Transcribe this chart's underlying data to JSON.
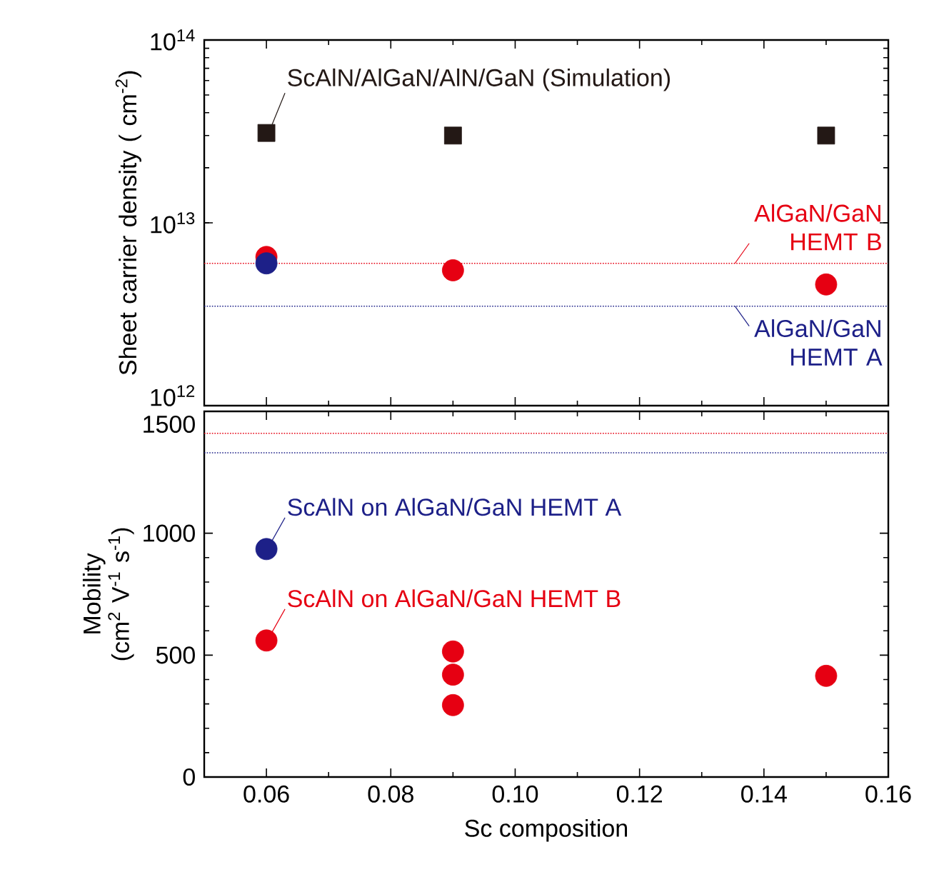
{
  "chart_data": [
    {
      "type": "scatter",
      "ylabel": "Sheet carrier density ( cm$^{-2}$)",
      "log": "y",
      "tick_labels": "y",
      "xlim": [
        0.05,
        0.16
      ],
      "xticks": [
        0.06,
        0.08,
        0.1,
        0.12,
        0.14,
        0.16
      ],
      "ylim": [
        1000000000000.0,
        100000000000000.0
      ],
      "yticks": [
        {
          "value": 1000000000000.0,
          "label": "10$^{12}$"
        },
        {
          "value": 10000000000000.0,
          "label": "10$^{13}$"
        },
        {
          "value": 100000000000000.0,
          "label": "10$^{14}$"
        }
      ],
      "series": [
        {
          "name": "ScAlN/AlGaN/AlN/GaN (Simulation)",
          "color": "#231815",
          "marker": "square",
          "x": [
            0.06,
            0.09,
            0.15
          ],
          "values": [
            31000000000000.0,
            30000000000000.0,
            30000000000000.0
          ]
        },
        {
          "color": "#e60012",
          "marker": "circle",
          "x": [
            0.06,
            0.09,
            0.15
          ],
          "values": [
            6500000000000.0,
            5500000000000.0,
            4600000000000.0
          ]
        },
        {
          "color": "#1d2088",
          "marker": "circle",
          "x": [
            0.06
          ],
          "values": [
            6000000000000.0
          ]
        }
      ],
      "ref_lines": [
        {
          "axis": "y",
          "value": 6000000000000.0,
          "label": "AlGaN/GaN HEMT B",
          "color": "#e60012",
          "line_style": "dotted"
        },
        {
          "axis": "y",
          "value": 3500000000000.0,
          "label": "AlGaN/GaN HEMT A",
          "color": "#1d2088",
          "line_style": "dotted"
        }
      ]
    },
    {
      "type": "scatter",
      "xlabel": "Sc composition",
      "ylabel": "Mobility (cm$^{2}$ V$^{-1}$ s$^{-1}$)",
      "xlim": [
        0.05,
        0.16
      ],
      "xticks": [
        0.06,
        0.08,
        {
          "value": 0.1,
          "label": "0.10"
        },
        0.12,
        0.14,
        0.16
      ],
      "ylim": [
        0,
        1500
      ],
      "yticks": [
        0,
        500,
        1000,
        1500
      ],
      "series": [
        {
          "name": "ScAlN on AlGaN/GaN HEMT A",
          "color": "#1d2088",
          "marker": "circle",
          "x": [
            0.06
          ],
          "values": [
            935
          ]
        },
        {
          "name": "ScAlN on AlGaN/GaN HEMT B",
          "color": "#e60012",
          "marker": "circle",
          "x": [
            0.06,
            0.09,
            0.09,
            0.09,
            0.15
          ],
          "values": [
            560,
            515,
            420,
            295,
            415
          ]
        }
      ],
      "ref_lines": [
        {
          "axis": "y",
          "value": 1410,
          "color": "#e60012",
          "line_style": "dotted"
        },
        {
          "axis": "y",
          "value": 1330,
          "color": "#1d2088",
          "line_style": "dotted"
        }
      ]
    }
  ]
}
